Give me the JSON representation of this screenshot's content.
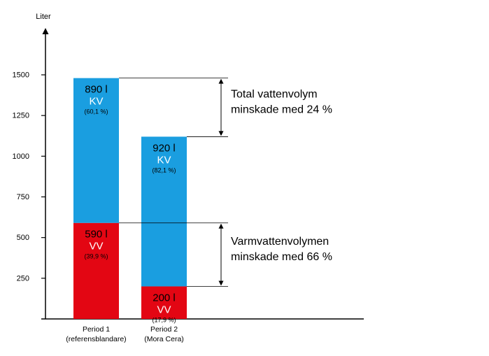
{
  "chart_data": {
    "type": "bar",
    "stacked": true,
    "ylabel": "Liter",
    "ylim": [
      0,
      1650
    ],
    "yticks": [
      250,
      500,
      750,
      1000,
      1250,
      1500
    ],
    "grid": false,
    "categories": [
      "Period 1\n(referensblandare)",
      "Period 2\n(Mora Cera)"
    ],
    "series": [
      {
        "name": "VV",
        "color": "#e30613",
        "values": [
          590,
          200
        ],
        "value_labels": [
          "590 l",
          "200 l"
        ],
        "percent_labels": [
          "(39,9 %)",
          "(17,9 %)"
        ]
      },
      {
        "name": "KV",
        "color": "#1a9ee0",
        "values": [
          890,
          920
        ],
        "value_labels": [
          "890 l",
          "920 l"
        ],
        "percent_labels": [
          "(60,1 %)",
          "(82,1 %)"
        ]
      }
    ],
    "annotations": [
      {
        "text": [
          "Total vattenvolym",
          "minskade med 24 %"
        ],
        "from": 1480,
        "to": 1120
      },
      {
        "text": [
          "Varmvattenvolymen",
          "minskade med 66 %"
        ],
        "from": 590,
        "to": 200
      }
    ]
  }
}
